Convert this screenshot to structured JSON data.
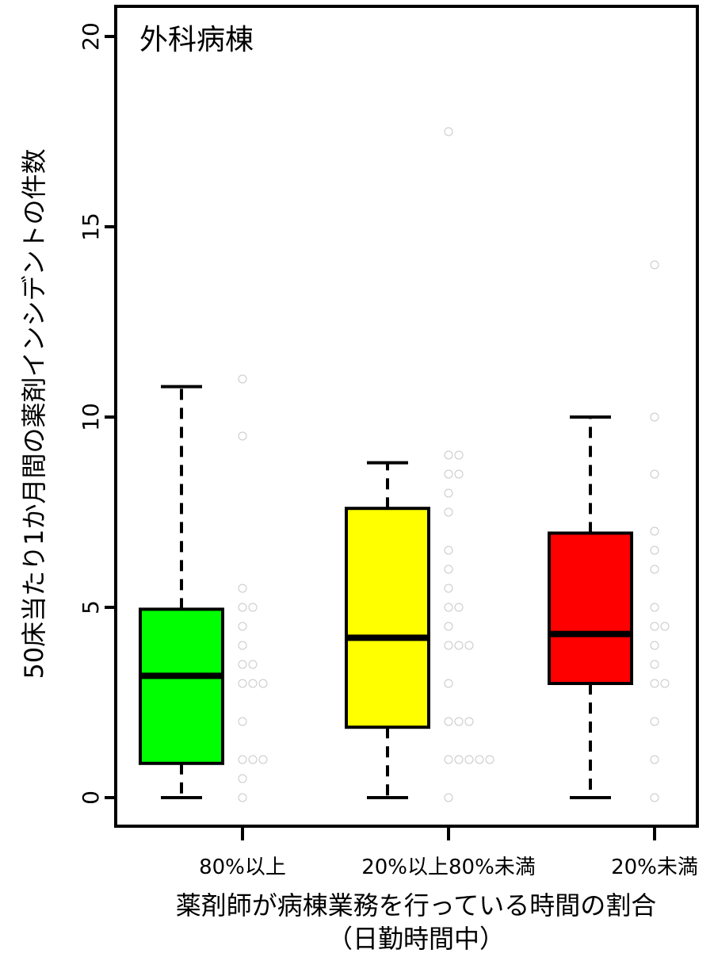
{
  "chart_data": {
    "type": "box",
    "title": "外科病棟",
    "ylabel": "50床当たり1か月間の薬剤インシデントの件数",
    "xlabel": "薬剤師が病棟業務を行っている時間の割合",
    "xlabel_sub": "（日勤時間中）",
    "ylim": [
      -0.7,
      21
    ],
    "yticks": [
      0,
      5,
      10,
      15,
      20
    ],
    "ytick_labels": [
      "0",
      "5",
      "10",
      "15",
      "20"
    ],
    "grid": false,
    "legend": "none",
    "categories": [
      "80%以上",
      "20%以上80%未満",
      "20%未満"
    ],
    "groups": [
      {
        "category": "80%以上",
        "color": "#00ff00",
        "whisker_low": 0,
        "q1": 0.9,
        "median": 3.2,
        "q3": 4.95,
        "whisker_high": 10.8,
        "points": [
          {
            "y": 11.0
          },
          {
            "y": 9.5
          },
          {
            "y": 5.5
          },
          {
            "y": 5.0
          },
          {
            "y": 5.0,
            "col": 1
          },
          {
            "y": 4.5
          },
          {
            "y": 4.0
          },
          {
            "y": 3.5
          },
          {
            "y": 3.5,
            "col": 1
          },
          {
            "y": 3.0
          },
          {
            "y": 3.0,
            "col": 1
          },
          {
            "y": 3.0,
            "col": 2
          },
          {
            "y": 2.0
          },
          {
            "y": 1.0
          },
          {
            "y": 1.0,
            "col": 1
          },
          {
            "y": 1.0,
            "col": 2
          },
          {
            "y": 0.5
          },
          {
            "y": 0.0
          }
        ]
      },
      {
        "category": "20%以上80%未満",
        "color": "#ffff00",
        "whisker_low": 0,
        "q1": 1.85,
        "median": 4.2,
        "q3": 7.6,
        "whisker_high": 8.8,
        "points": [
          {
            "y": 17.5
          },
          {
            "y": 9.0
          },
          {
            "y": 9.0,
            "col": 1
          },
          {
            "y": 8.5
          },
          {
            "y": 8.5,
            "col": 1
          },
          {
            "y": 8.0
          },
          {
            "y": 7.5
          },
          {
            "y": 6.5
          },
          {
            "y": 6.0
          },
          {
            "y": 5.5
          },
          {
            "y": 5.0
          },
          {
            "y": 5.0,
            "col": 1
          },
          {
            "y": 4.5
          },
          {
            "y": 4.0
          },
          {
            "y": 4.0,
            "col": 1
          },
          {
            "y": 4.0,
            "col": 2
          },
          {
            "y": 3.0
          },
          {
            "y": 2.0
          },
          {
            "y": 2.0,
            "col": 1
          },
          {
            "y": 2.0,
            "col": 2
          },
          {
            "y": 1.0
          },
          {
            "y": 1.0,
            "col": 1
          },
          {
            "y": 1.0,
            "col": 2
          },
          {
            "y": 1.0,
            "col": 3
          },
          {
            "y": 1.0,
            "col": 4
          },
          {
            "y": 0.0
          }
        ]
      },
      {
        "category": "20%未満",
        "color": "#ff0000",
        "whisker_low": 0,
        "q1": 3.0,
        "median": 4.3,
        "q3": 6.95,
        "whisker_high": 10.0,
        "points": [
          {
            "y": 14.0
          },
          {
            "y": 10.0
          },
          {
            "y": 8.5
          },
          {
            "y": 7.0
          },
          {
            "y": 6.5
          },
          {
            "y": 6.0
          },
          {
            "y": 5.0
          },
          {
            "y": 4.5
          },
          {
            "y": 4.5,
            "col": 1
          },
          {
            "y": 4.0
          },
          {
            "y": 3.5
          },
          {
            "y": 3.0
          },
          {
            "y": 3.0,
            "col": 1
          },
          {
            "y": 2.0
          },
          {
            "y": 1.0
          },
          {
            "y": 0.0
          }
        ]
      }
    ]
  }
}
